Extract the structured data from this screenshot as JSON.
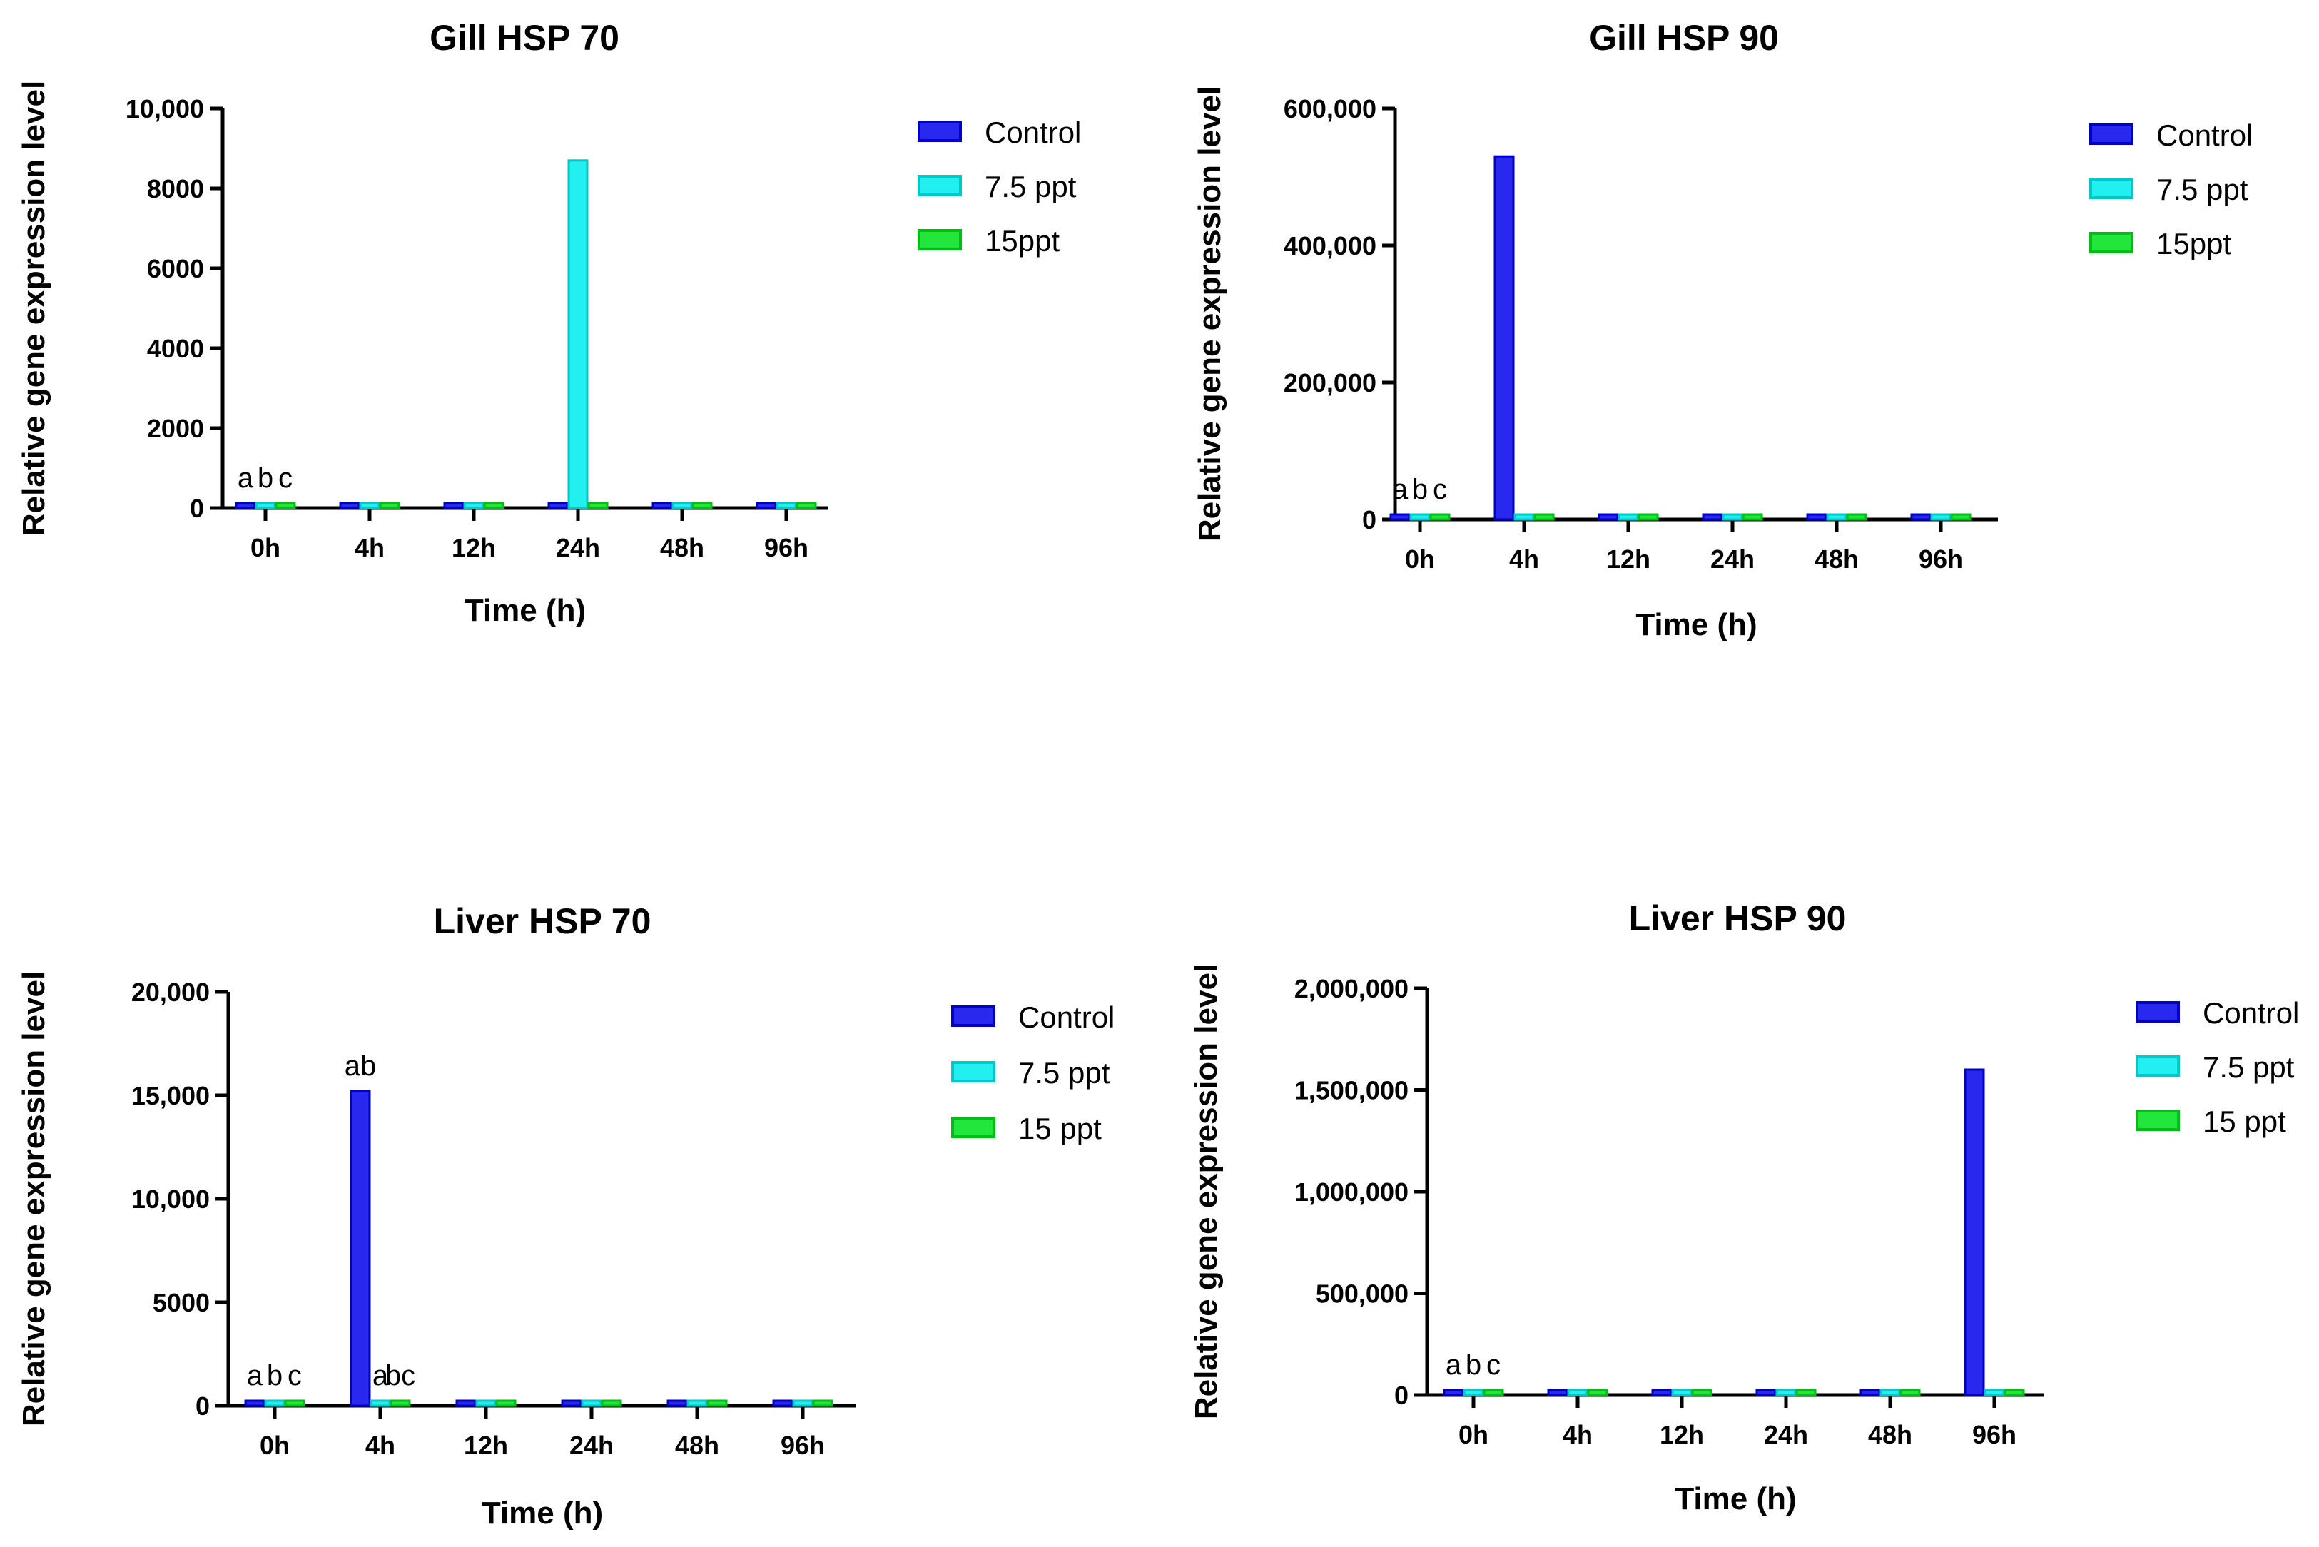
{
  "chart_data": [
    {
      "type": "bar",
      "title": "Gill HSP 70",
      "xlabel": "Time (h)",
      "ylabel": "Relative gene expression level",
      "categories": [
        "0h",
        "4h",
        "12h",
        "24h",
        "48h",
        "96h"
      ],
      "ylim": [
        0,
        10000
      ],
      "yticks": [
        "0",
        "2000",
        "4000",
        "6000",
        "8000",
        "10,000"
      ],
      "series": [
        {
          "name": "Control",
          "color": "#2828ee",
          "values": [
            1,
            1,
            1,
            1,
            1,
            1
          ]
        },
        {
          "name": "7.5 ppt",
          "color": "#22f0f0",
          "values": [
            1,
            1,
            1,
            8700,
            1,
            1
          ]
        },
        {
          "name": "15ppt",
          "color": "#22e63c",
          "values": [
            1,
            1,
            1,
            1,
            1,
            1
          ]
        }
      ],
      "annotations": [
        {
          "text": "a",
          "category": "0h",
          "series": "Control"
        },
        {
          "text": "b",
          "category": "0h",
          "series": "7.5 ppt"
        },
        {
          "text": "c",
          "category": "0h",
          "series": "15ppt"
        }
      ]
    },
    {
      "type": "bar",
      "title": "Gill HSP 90",
      "xlabel": "Time (h)",
      "ylabel": "Relative gene expression level",
      "categories": [
        "0h",
        "4h",
        "12h",
        "24h",
        "48h",
        "96h"
      ],
      "ylim": [
        0,
        600000
      ],
      "yticks": [
        "0",
        "200,000",
        "400,000",
        "600,000"
      ],
      "series": [
        {
          "name": "Control",
          "color": "#2828ee",
          "values": [
            1,
            530000,
            1,
            1,
            1,
            1
          ]
        },
        {
          "name": "7.5 ppt",
          "color": "#22f0f0",
          "values": [
            1,
            1,
            1,
            1,
            1,
            1
          ]
        },
        {
          "name": "15ppt",
          "color": "#22e63c",
          "values": [
            1,
            1,
            1,
            1,
            1,
            1
          ]
        }
      ],
      "annotations": [
        {
          "text": "a",
          "category": "0h",
          "series": "Control"
        },
        {
          "text": "b",
          "category": "0h",
          "series": "7.5 ppt"
        },
        {
          "text": "c",
          "category": "0h",
          "series": "15ppt"
        }
      ]
    },
    {
      "type": "bar",
      "title": "Liver HSP 70",
      "xlabel": "Time (h)",
      "ylabel": "Relative gene expression level",
      "categories": [
        "0h",
        "4h",
        "12h",
        "24h",
        "48h",
        "96h"
      ],
      "ylim": [
        0,
        20000
      ],
      "yticks": [
        "0",
        "5000",
        "10,000",
        "15,000",
        "20,000"
      ],
      "series": [
        {
          "name": "Control",
          "color": "#2828ee",
          "values": [
            1,
            15200,
            1,
            1,
            1,
            1
          ]
        },
        {
          "name": "7.5 ppt",
          "color": "#22f0f0",
          "values": [
            1,
            1,
            1,
            1,
            1,
            1
          ]
        },
        {
          "name": "15 ppt",
          "color": "#22e63c",
          "values": [
            1,
            1,
            1,
            1,
            1,
            1
          ]
        }
      ],
      "annotations": [
        {
          "text": "a",
          "category": "0h",
          "series": "Control"
        },
        {
          "text": "b",
          "category": "0h",
          "series": "7.5 ppt"
        },
        {
          "text": "c",
          "category": "0h",
          "series": "15 ppt"
        },
        {
          "text": "ab",
          "category": "4h",
          "series": "Control"
        },
        {
          "text": "a",
          "category": "4h",
          "series": "7.5 ppt"
        },
        {
          "text": "bc",
          "category": "4h",
          "series": "15 ppt"
        }
      ]
    },
    {
      "type": "bar",
      "title": "Liver HSP 90",
      "xlabel": "Time (h)",
      "ylabel": "Relative gene expression level",
      "categories": [
        "0h",
        "4h",
        "12h",
        "24h",
        "48h",
        "96h"
      ],
      "ylim": [
        0,
        2000000
      ],
      "yticks": [
        "0",
        "500,000",
        "1,000,000",
        "1,500,000",
        "2,000,000"
      ],
      "series": [
        {
          "name": "Control",
          "color": "#2828ee",
          "values": [
            1,
            1,
            1,
            1,
            1,
            1600000
          ]
        },
        {
          "name": "7.5 ppt",
          "color": "#22f0f0",
          "values": [
            1,
            1,
            1,
            1,
            1,
            1
          ]
        },
        {
          "name": "15 ppt",
          "color": "#22e63c",
          "values": [
            1,
            1,
            1,
            1,
            1,
            1
          ]
        }
      ],
      "annotations": [
        {
          "text": "a",
          "category": "0h",
          "series": "Control"
        },
        {
          "text": "b",
          "category": "0h",
          "series": "7.5 ppt"
        },
        {
          "text": "c",
          "category": "0h",
          "series": "15 ppt"
        }
      ]
    }
  ]
}
